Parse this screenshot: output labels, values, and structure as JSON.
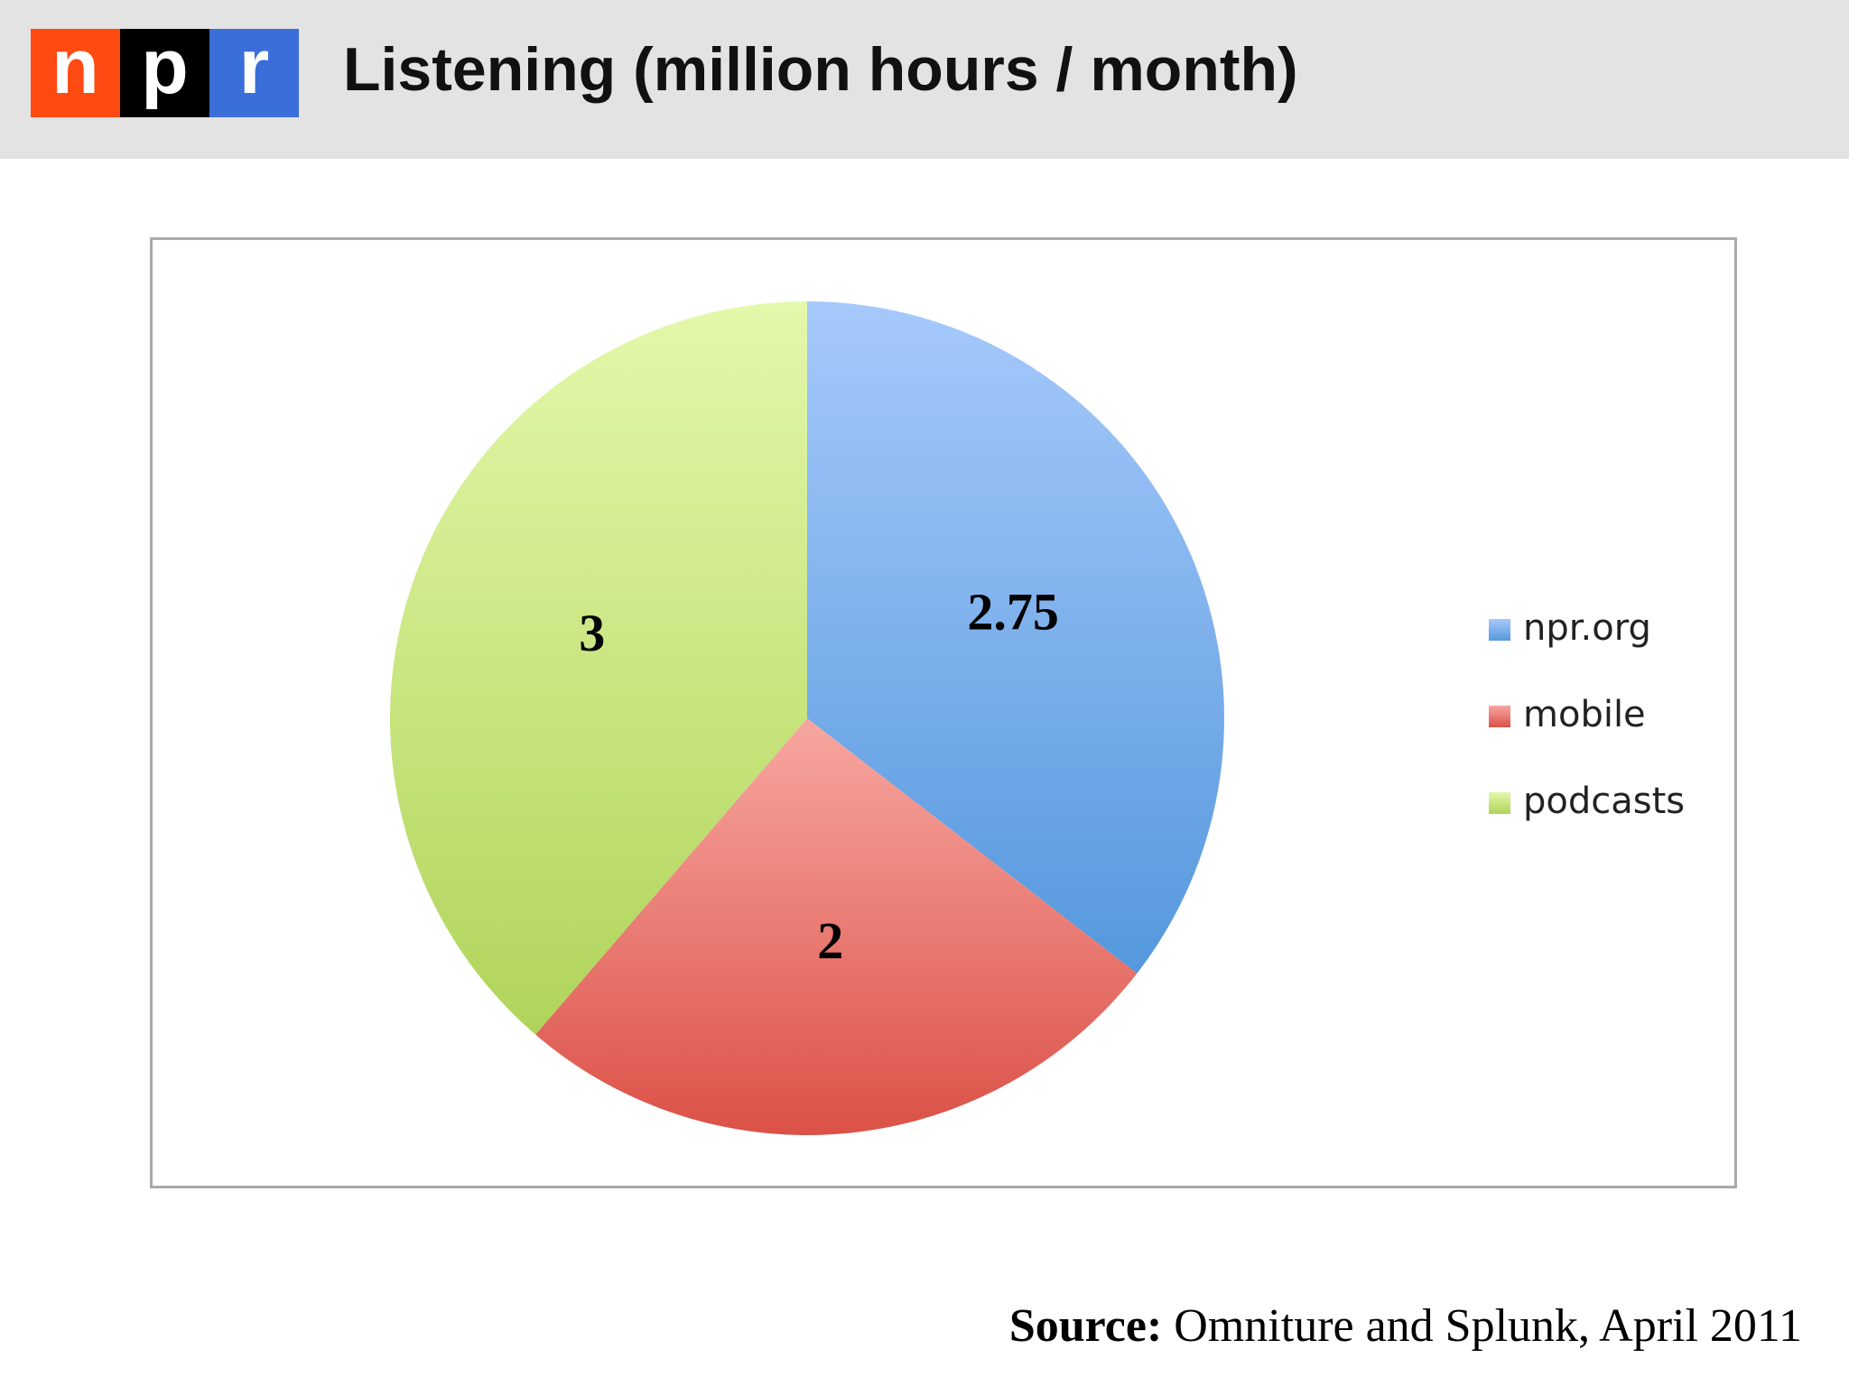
{
  "logo": {
    "letters": [
      "n",
      "p",
      "r"
    ],
    "colors": [
      "#ff4a12",
      "#000000",
      "#3a6ed8"
    ]
  },
  "header": {
    "title": "Listening (million hours / month)"
  },
  "chart_data": {
    "type": "pie",
    "title": "",
    "series": [
      {
        "name": "npr.org",
        "value": 2.75,
        "label": "2.75",
        "color_top": "#a6c9fb",
        "color_bottom": "#5598dd"
      },
      {
        "name": "mobile",
        "value": 2,
        "label": "2",
        "color_top": "#f7a7a1",
        "color_bottom": "#db5147"
      },
      {
        "name": "podcasts",
        "value": 3,
        "label": "3",
        "color_top": "#e4f8ab",
        "color_bottom": "#b0d45a"
      }
    ],
    "start": "12 o'clock",
    "direction": "clockwise",
    "legend_position": "right"
  },
  "source": {
    "prefix": "Source:",
    "text": " Omniture and Splunk, April 2011"
  }
}
